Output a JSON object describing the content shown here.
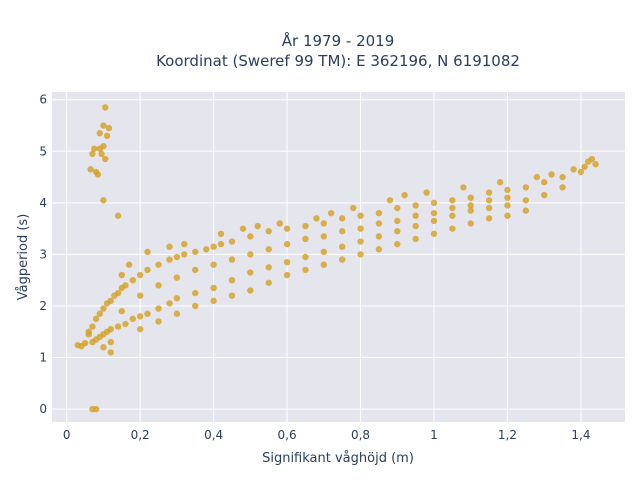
{
  "chart_data": {
    "type": "scatter",
    "title_line1": "År 1979 - 2019",
    "title_line2": "Koordinat (Sweref 99 TM): E 362196, N 6191082",
    "xlabel": "Signifikant våghöjd (m)",
    "ylabel": "Vågperiod (s)",
    "xlim": [
      -0.04,
      1.52
    ],
    "ylim": [
      -0.25,
      6.15
    ],
    "x_ticks": [
      0,
      0.2,
      0.4,
      0.6,
      0.8,
      1,
      1.2,
      1.4
    ],
    "x_tick_labels": [
      "0",
      "0,2",
      "0,4",
      "0,6",
      "0,8",
      "1",
      "1,2",
      "1,4"
    ],
    "y_ticks": [
      0,
      1,
      2,
      3,
      4,
      5,
      6
    ],
    "y_tick_labels": [
      "0",
      "1",
      "2",
      "3",
      "4",
      "5",
      "6"
    ],
    "grid": true,
    "colors": {
      "marker": "#d4a020",
      "plot_bg": "#e5e5ee",
      "grid": "#ffffff"
    },
    "series": [
      {
        "points": [
          [
            0.03,
            1.24
          ],
          [
            0.04,
            1.22
          ],
          [
            0.05,
            1.28
          ],
          [
            0.06,
            1.45
          ],
          [
            0.07,
            1.6
          ],
          [
            0.08,
            1.75
          ],
          [
            0.09,
            1.85
          ],
          [
            0.1,
            1.95
          ],
          [
            0.11,
            2.05
          ],
          [
            0.12,
            2.1
          ],
          [
            0.13,
            2.2
          ],
          [
            0.14,
            2.25
          ],
          [
            0.15,
            2.35
          ],
          [
            0.16,
            2.4
          ],
          [
            0.18,
            2.5
          ],
          [
            0.2,
            2.6
          ],
          [
            0.22,
            2.7
          ],
          [
            0.25,
            2.8
          ],
          [
            0.28,
            2.9
          ],
          [
            0.3,
            2.95
          ],
          [
            0.32,
            3.0
          ],
          [
            0.35,
            3.05
          ],
          [
            0.38,
            3.1
          ],
          [
            0.4,
            3.15
          ],
          [
            0.42,
            3.2
          ],
          [
            0.45,
            3.25
          ],
          [
            0.5,
            3.35
          ],
          [
            0.55,
            3.45
          ],
          [
            0.6,
            3.5
          ],
          [
            0.65,
            3.55
          ],
          [
            0.7,
            3.6
          ],
          [
            0.75,
            3.7
          ],
          [
            0.8,
            3.75
          ],
          [
            0.85,
            3.8
          ],
          [
            0.9,
            3.9
          ],
          [
            0.95,
            3.95
          ],
          [
            1.0,
            4.0
          ],
          [
            1.05,
            4.05
          ],
          [
            1.1,
            4.1
          ],
          [
            1.15,
            4.2
          ],
          [
            1.2,
            4.25
          ],
          [
            1.25,
            4.3
          ],
          [
            1.3,
            4.4
          ],
          [
            1.35,
            4.5
          ],
          [
            1.4,
            4.6
          ],
          [
            1.42,
            4.8
          ],
          [
            1.44,
            4.75
          ],
          [
            0.06,
            1.5
          ],
          [
            0.07,
            1.3
          ],
          [
            0.08,
            1.35
          ],
          [
            0.09,
            1.4
          ],
          [
            0.1,
            1.45
          ],
          [
            0.11,
            1.5
          ],
          [
            0.12,
            1.55
          ],
          [
            0.14,
            1.6
          ],
          [
            0.16,
            1.65
          ],
          [
            0.18,
            1.75
          ],
          [
            0.2,
            1.8
          ],
          [
            0.22,
            1.85
          ],
          [
            0.25,
            1.95
          ],
          [
            0.28,
            2.05
          ],
          [
            0.3,
            2.15
          ],
          [
            0.35,
            2.25
          ],
          [
            0.4,
            2.35
          ],
          [
            0.45,
            2.5
          ],
          [
            0.5,
            2.65
          ],
          [
            0.55,
            2.75
          ],
          [
            0.6,
            2.85
          ],
          [
            0.65,
            2.95
          ],
          [
            0.7,
            3.05
          ],
          [
            0.75,
            3.15
          ],
          [
            0.8,
            3.25
          ],
          [
            0.85,
            3.35
          ],
          [
            0.9,
            3.45
          ],
          [
            0.95,
            3.55
          ],
          [
            1.0,
            3.65
          ],
          [
            1.05,
            3.75
          ],
          [
            1.1,
            3.85
          ],
          [
            1.15,
            3.9
          ],
          [
            1.2,
            3.95
          ],
          [
            1.25,
            4.05
          ],
          [
            1.3,
            4.15
          ],
          [
            1.35,
            4.3
          ],
          [
            0.1,
            1.2
          ],
          [
            0.12,
            1.3
          ],
          [
            0.15,
            1.9
          ],
          [
            0.2,
            2.2
          ],
          [
            0.25,
            2.4
          ],
          [
            0.3,
            2.55
          ],
          [
            0.35,
            2.7
          ],
          [
            0.4,
            2.8
          ],
          [
            0.45,
            2.9
          ],
          [
            0.5,
            3.0
          ],
          [
            0.55,
            3.1
          ],
          [
            0.6,
            3.2
          ],
          [
            0.65,
            3.3
          ],
          [
            0.7,
            3.35
          ],
          [
            0.75,
            3.45
          ],
          [
            0.8,
            3.5
          ],
          [
            0.85,
            3.6
          ],
          [
            0.9,
            3.65
          ],
          [
            0.95,
            3.75
          ],
          [
            1.0,
            3.8
          ],
          [
            1.05,
            3.9
          ],
          [
            1.1,
            3.95
          ],
          [
            1.15,
            4.05
          ],
          [
            1.2,
            4.1
          ],
          [
            0.15,
            2.6
          ],
          [
            0.17,
            2.8
          ],
          [
            0.22,
            3.05
          ],
          [
            0.28,
            3.15
          ],
          [
            0.32,
            3.2
          ],
          [
            0.42,
            3.4
          ],
          [
            0.48,
            3.5
          ],
          [
            0.52,
            3.55
          ],
          [
            0.58,
            3.6
          ],
          [
            0.68,
            3.7
          ],
          [
            0.72,
            3.8
          ],
          [
            0.78,
            3.9
          ],
          [
            0.88,
            4.05
          ],
          [
            0.92,
            4.15
          ],
          [
            0.98,
            4.2
          ],
          [
            1.08,
            4.3
          ],
          [
            1.18,
            4.4
          ],
          [
            1.28,
            4.5
          ],
          [
            1.32,
            4.55
          ],
          [
            1.38,
            4.65
          ],
          [
            1.41,
            4.7
          ],
          [
            1.43,
            4.85
          ],
          [
            0.2,
            1.55
          ],
          [
            0.25,
            1.7
          ],
          [
            0.3,
            1.85
          ],
          [
            0.35,
            2.0
          ],
          [
            0.4,
            2.1
          ],
          [
            0.45,
            2.2
          ],
          [
            0.5,
            2.3
          ],
          [
            0.55,
            2.45
          ],
          [
            0.6,
            2.6
          ],
          [
            0.65,
            2.7
          ],
          [
            0.7,
            2.8
          ],
          [
            0.75,
            2.9
          ],
          [
            0.8,
            3.0
          ],
          [
            0.85,
            3.1
          ],
          [
            0.9,
            3.2
          ],
          [
            0.95,
            3.3
          ],
          [
            1.0,
            3.4
          ],
          [
            1.05,
            3.5
          ],
          [
            1.1,
            3.6
          ],
          [
            1.15,
            3.7
          ],
          [
            1.2,
            3.75
          ],
          [
            1.25,
            3.85
          ],
          [
            0.065,
            4.65
          ],
          [
            0.07,
            4.95
          ],
          [
            0.075,
            5.05
          ],
          [
            0.08,
            4.6
          ],
          [
            0.085,
            4.55
          ],
          [
            0.09,
            5.05
          ],
          [
            0.095,
            4.95
          ],
          [
            0.1,
            5.1
          ],
          [
            0.105,
            4.85
          ],
          [
            0.11,
            5.3
          ],
          [
            0.115,
            5.45
          ],
          [
            0.09,
            5.35
          ],
          [
            0.1,
            5.5
          ],
          [
            0.105,
            5.85
          ],
          [
            0.1,
            4.05
          ],
          [
            0.14,
            3.75
          ],
          [
            0.12,
            1.1
          ],
          [
            0.07,
            0.0
          ],
          [
            0.08,
            0.0
          ]
        ]
      }
    ]
  }
}
